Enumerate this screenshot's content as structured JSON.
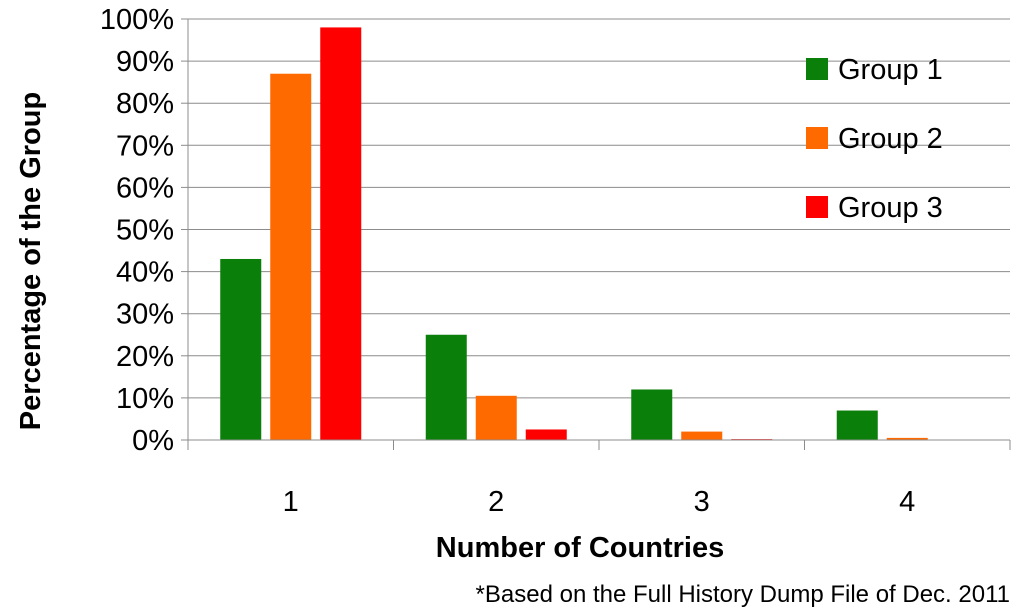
{
  "chart_data": {
    "type": "bar",
    "categories": [
      "1",
      "2",
      "3",
      "4"
    ],
    "series": [
      {
        "name": "Group 1",
        "color": "#0a7f0a",
        "values": [
          43,
          25,
          12,
          7
        ]
      },
      {
        "name": "Group 2",
        "color": "#ff6a00",
        "values": [
          87,
          10.5,
          2,
          0.5
        ]
      },
      {
        "name": "Group 3",
        "color": "#ff0000",
        "values": [
          98,
          2.5,
          0.2,
          0
        ]
      }
    ],
    "xlabel": "Number of Countries",
    "ylabel": "Percentage of the Group",
    "ylim": [
      0,
      100
    ],
    "yticks": [
      "0%",
      "10%",
      "20%",
      "30%",
      "40%",
      "50%",
      "60%",
      "70%",
      "80%",
      "90%",
      "100%"
    ],
    "grid": true,
    "legend_position": "top-right"
  },
  "footnote": "*Based on the Full History Dump File of Dec. 2011"
}
